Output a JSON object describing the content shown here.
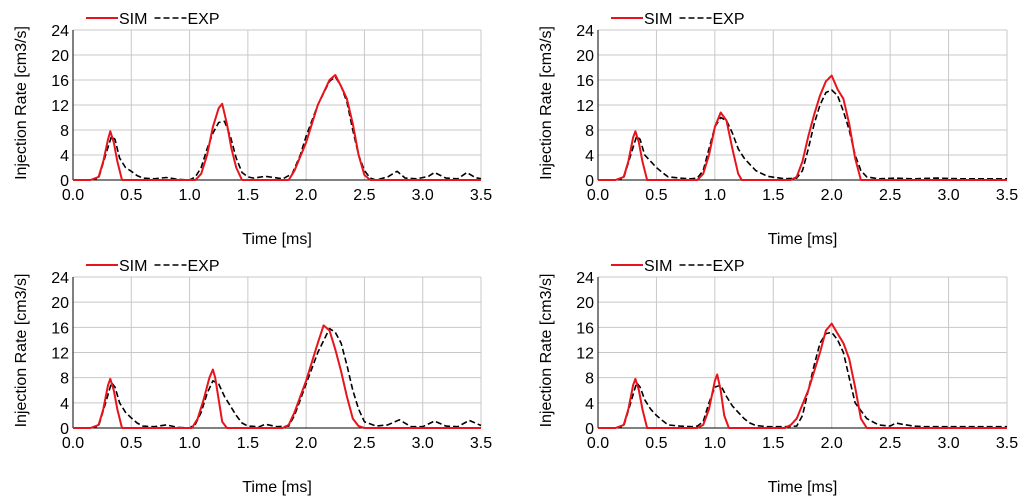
{
  "chart_data": [
    {
      "type": "line",
      "xlabel": "Time [ms]",
      "ylabel": "Injection Rate [cm3/s]",
      "xlim": [
        0,
        3.5
      ],
      "ylim": [
        0,
        24
      ],
      "xticks": [
        "0.0",
        "0.5",
        "1.0",
        "1.5",
        "2.0",
        "2.5",
        "3.0",
        "3.5"
      ],
      "yticks": [
        "0",
        "4",
        "8",
        "12",
        "16",
        "20",
        "24"
      ],
      "grid": true,
      "legend": "top-left",
      "series": [
        {
          "name": "SIM",
          "color": "#e8141c",
          "style": "solid",
          "x": [
            0.0,
            0.15,
            0.22,
            0.26,
            0.3,
            0.32,
            0.35,
            0.38,
            0.42,
            0.5,
            1.05,
            1.1,
            1.15,
            1.2,
            1.25,
            1.28,
            1.32,
            1.36,
            1.4,
            1.45,
            1.5,
            1.85,
            1.9,
            2.0,
            2.1,
            2.2,
            2.25,
            2.3,
            2.35,
            2.4,
            2.45,
            2.5,
            2.55,
            3.5
          ],
          "y": [
            0,
            0,
            0.5,
            3,
            6.5,
            7.8,
            6,
            3,
            0,
            0,
            0,
            1,
            4,
            8.5,
            11.5,
            12.2,
            9,
            5,
            2,
            0,
            0,
            0,
            1.5,
            6,
            12,
            16,
            16.8,
            15,
            13,
            9,
            4,
            0.8,
            0,
            0
          ]
        },
        {
          "name": "EXP",
          "color": "#000000",
          "style": "dashed",
          "x": [
            0.0,
            0.15,
            0.22,
            0.28,
            0.33,
            0.36,
            0.4,
            0.45,
            0.5,
            0.55,
            0.6,
            0.7,
            0.8,
            0.9,
            1.0,
            1.05,
            1.1,
            1.15,
            1.2,
            1.25,
            1.3,
            1.35,
            1.4,
            1.45,
            1.5,
            1.55,
            1.65,
            1.8,
            1.88,
            1.95,
            2.0,
            2.1,
            2.2,
            2.25,
            2.3,
            2.35,
            2.4,
            2.45,
            2.5,
            2.55,
            2.6,
            2.7,
            2.78,
            2.85,
            2.95,
            3.05,
            3.1,
            3.2,
            3.3,
            3.38,
            3.45,
            3.5
          ],
          "y": [
            0,
            0,
            0.3,
            4,
            7,
            6.5,
            3.5,
            2,
            1.4,
            0.7,
            0.3,
            0.2,
            0.4,
            0.1,
            0,
            0.5,
            2,
            5,
            7.5,
            9.2,
            9.4,
            7,
            3.5,
            1.2,
            0.5,
            0.3,
            0.6,
            0.2,
            1,
            4,
            7,
            12,
            15.8,
            16.5,
            15,
            12.5,
            8,
            4,
            1.5,
            0.3,
            0,
            0.5,
            1.4,
            0.3,
            0.2,
            0.6,
            1.2,
            0.3,
            0.2,
            1.2,
            0.4,
            0.2
          ]
        }
      ]
    },
    {
      "type": "line",
      "xlabel": "Time [ms]",
      "ylabel": "Injection Rate [cm3/s]",
      "xlim": [
        0,
        3.5
      ],
      "ylim": [
        0,
        24
      ],
      "xticks": [
        "0.0",
        "0.5",
        "1.0",
        "1.5",
        "2.0",
        "2.5",
        "3.0",
        "3.5"
      ],
      "yticks": [
        "0",
        "4",
        "8",
        "12",
        "16",
        "20",
        "24"
      ],
      "grid": true,
      "legend": "top-left",
      "series": [
        {
          "name": "SIM",
          "color": "#e8141c",
          "style": "solid",
          "x": [
            0.0,
            0.15,
            0.22,
            0.26,
            0.3,
            0.32,
            0.35,
            0.38,
            0.42,
            0.5,
            0.85,
            0.9,
            0.95,
            1.0,
            1.05,
            1.1,
            1.15,
            1.2,
            1.23,
            1.3,
            1.65,
            1.7,
            1.75,
            1.8,
            1.85,
            1.9,
            1.95,
            2.0,
            2.05,
            2.1,
            2.15,
            2.2,
            2.25,
            3.5
          ],
          "y": [
            0,
            0,
            0.5,
            3,
            6.8,
            7.8,
            6,
            3,
            0,
            0,
            0,
            1,
            4,
            8.5,
            10.8,
            9.5,
            5,
            1,
            0,
            0,
            0,
            0.5,
            3,
            7,
            10.5,
            13.5,
            15.8,
            16.7,
            14.5,
            13,
            9,
            3.5,
            0,
            0
          ]
        },
        {
          "name": "EXP",
          "color": "#000000",
          "style": "dashed",
          "x": [
            0.0,
            0.15,
            0.22,
            0.28,
            0.33,
            0.36,
            0.4,
            0.45,
            0.5,
            0.55,
            0.6,
            0.7,
            0.8,
            0.85,
            0.9,
            0.95,
            1.0,
            1.05,
            1.1,
            1.15,
            1.2,
            1.25,
            1.3,
            1.35,
            1.45,
            1.6,
            1.7,
            1.75,
            1.8,
            1.85,
            1.9,
            1.95,
            2.0,
            2.05,
            2.1,
            2.15,
            2.2,
            2.25,
            2.3,
            2.4,
            2.55,
            2.7,
            2.9,
            3.1,
            3.3,
            3.5
          ],
          "y": [
            0,
            0,
            0.3,
            4,
            7,
            6.5,
            4,
            3,
            2,
            1.2,
            0.5,
            0.3,
            0.2,
            0.3,
            1.5,
            5,
            8.5,
            10,
            9.5,
            7.5,
            5,
            3.5,
            2.5,
            1.5,
            0.6,
            0.2,
            0.3,
            1.5,
            5,
            9,
            12,
            14,
            14.4,
            13.5,
            11,
            8,
            4,
            1.5,
            0.5,
            0.2,
            0.3,
            0.2,
            0.3,
            0.2,
            0.2,
            0.2
          ]
        }
      ]
    },
    {
      "type": "line",
      "xlabel": "Time [ms]",
      "ylabel": "Injection Rate [cm3/s]",
      "xlim": [
        0,
        3.5
      ],
      "ylim": [
        0,
        24
      ],
      "xticks": [
        "0.0",
        "0.5",
        "1.0",
        "1.5",
        "2.0",
        "2.5",
        "3.0",
        "3.5"
      ],
      "yticks": [
        "0",
        "4",
        "8",
        "12",
        "16",
        "20",
        "24"
      ],
      "grid": true,
      "legend": "top-left",
      "series": [
        {
          "name": "SIM",
          "color": "#e8141c",
          "style": "solid",
          "x": [
            0.0,
            0.15,
            0.22,
            0.26,
            0.3,
            0.32,
            0.35,
            0.38,
            0.42,
            0.5,
            1.02,
            1.07,
            1.12,
            1.17,
            1.2,
            1.22,
            1.25,
            1.28,
            1.32,
            1.4,
            1.8,
            1.85,
            1.9,
            2.0,
            2.1,
            2.15,
            2.2,
            2.25,
            2.3,
            2.35,
            2.4,
            2.45,
            2.5,
            3.5
          ],
          "y": [
            0,
            0,
            0.5,
            3,
            6.8,
            7.8,
            6,
            3,
            0,
            0,
            0,
            1.5,
            4.5,
            8,
            9.3,
            8,
            4.5,
            1,
            0,
            0,
            0,
            0.5,
            2.5,
            7.5,
            13.5,
            16.3,
            15.5,
            12.5,
            9,
            5,
            1.5,
            0.3,
            0,
            0
          ]
        },
        {
          "name": "EXP",
          "color": "#000000",
          "style": "dashed",
          "x": [
            0.0,
            0.15,
            0.22,
            0.28,
            0.33,
            0.36,
            0.4,
            0.45,
            0.5,
            0.55,
            0.6,
            0.7,
            0.8,
            0.9,
            1.0,
            1.05,
            1.1,
            1.15,
            1.2,
            1.25,
            1.3,
            1.35,
            1.4,
            1.45,
            1.5,
            1.6,
            1.65,
            1.75,
            1.85,
            1.9,
            2.0,
            2.1,
            2.2,
            2.25,
            2.3,
            2.35,
            2.4,
            2.45,
            2.5,
            2.6,
            2.7,
            2.8,
            2.9,
            3.0,
            3.1,
            3.2,
            3.3,
            3.4,
            3.5
          ],
          "y": [
            0,
            0,
            0.3,
            4,
            7.2,
            6.5,
            4,
            2.5,
            1.6,
            0.8,
            0.3,
            0.2,
            0.5,
            0.1,
            0,
            0.6,
            2.5,
            5.5,
            7.5,
            7,
            5,
            3.5,
            2,
            0.8,
            0.3,
            0.2,
            0.6,
            0.2,
            0.3,
            2,
            7,
            12,
            15.8,
            15.2,
            13.5,
            10,
            6,
            3,
            1,
            0.3,
            0.5,
            1.3,
            0.2,
            0.2,
            1.1,
            0.3,
            0.2,
            1.2,
            0.4
          ]
        }
      ]
    },
    {
      "type": "line",
      "xlabel": "Time [ms]",
      "ylabel": "Injection Rate [cm3/s]",
      "xlim": [
        0,
        3.5
      ],
      "ylim": [
        0,
        24
      ],
      "xticks": [
        "0.0",
        "0.5",
        "1.0",
        "1.5",
        "2.0",
        "2.5",
        "3.0",
        "3.5"
      ],
      "yticks": [
        "0",
        "4",
        "8",
        "12",
        "16",
        "20",
        "24"
      ],
      "grid": true,
      "legend": "top-left",
      "series": [
        {
          "name": "SIM",
          "color": "#e8141c",
          "style": "solid",
          "x": [
            0.0,
            0.15,
            0.22,
            0.26,
            0.3,
            0.32,
            0.35,
            0.38,
            0.42,
            0.5,
            0.85,
            0.9,
            0.95,
            1.0,
            1.02,
            1.05,
            1.08,
            1.12,
            1.2,
            1.6,
            1.65,
            1.7,
            1.8,
            1.9,
            1.95,
            2.0,
            2.05,
            2.1,
            2.15,
            2.2,
            2.25,
            2.3,
            3.5
          ],
          "y": [
            0,
            0,
            0.5,
            3,
            6.8,
            7.8,
            6,
            3,
            0,
            0,
            0,
            0.5,
            3,
            7.5,
            8.5,
            6,
            2,
            0,
            0,
            0,
            0.5,
            1.5,
            6,
            12,
            15.5,
            16.6,
            15,
            13.5,
            11,
            6.5,
            1.5,
            0,
            0
          ]
        },
        {
          "name": "EXP",
          "color": "#000000",
          "style": "dashed",
          "x": [
            0.0,
            0.15,
            0.22,
            0.28,
            0.33,
            0.36,
            0.4,
            0.45,
            0.5,
            0.55,
            0.6,
            0.7,
            0.8,
            0.85,
            0.9,
            0.95,
            1.0,
            1.05,
            1.1,
            1.15,
            1.2,
            1.25,
            1.3,
            1.35,
            1.45,
            1.6,
            1.7,
            1.75,
            1.8,
            1.85,
            1.9,
            1.95,
            2.0,
            2.05,
            2.1,
            2.15,
            2.2,
            2.3,
            2.4,
            2.5,
            2.55,
            2.6,
            2.7,
            2.8,
            2.9,
            3.0,
            3.2,
            3.5
          ],
          "y": [
            0,
            0,
            0.3,
            4,
            7.2,
            6.5,
            4.5,
            3,
            2,
            1.2,
            0.5,
            0.3,
            0.2,
            0.3,
            1,
            4,
            6.5,
            6.8,
            5,
            3.5,
            2.5,
            1.5,
            0.8,
            0.4,
            0.2,
            0.2,
            0.3,
            2,
            6,
            10,
            13.5,
            15,
            15.2,
            14,
            12,
            8,
            4,
            1.5,
            0.5,
            0.3,
            0.8,
            0.6,
            0.3,
            0.2,
            0.2,
            0.2,
            0.2,
            0.2
          ]
        }
      ]
    }
  ]
}
